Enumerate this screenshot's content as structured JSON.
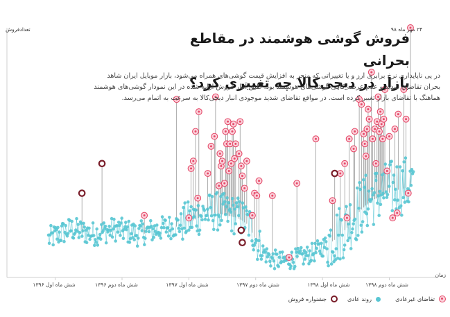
{
  "title": {
    "line1": "فروش گوشی هوشمند در مقاطع بحرانی",
    "line2": "بازار در دیجی‌کالا چه تغییری کرد؟"
  },
  "description": {
    "line1": "در پی ناپایداری نرخ برابری ارز و یا تغییراتی که منجر به افزایش قیمت گوشی‌های همراه می‌شود، بازار موبایل ایران شاهد",
    "line2": "بحران تقاضای شدید و عدم عرضه کافی گوشی‌های هوشمند بود. طبق آمار فروش ارایه شده در این نمودار گوشی‌های هوشمند",
    "line3": "هماهنگ با تقاضای بازار تغییر کرده است. در مواقع تقاضای شدید موجودی انبار دیجی‌کالا به سرعت به اتمام می‌رسد."
  },
  "axes": {
    "ylabel": "تعدادفروش",
    "xlabel": "زمان"
  },
  "peak_annotation": "۲۴ مهر ماه ۹۸",
  "x_ticks": [
    "شش ماه اول ۱۳۹۶",
    "شش ماه دوم ۱۳۹۶",
    "شش ماه اول ۱۳۹۷",
    "شش ماه دوم ۱۳۹۷",
    "شش ماه اول ۱۳۹۸",
    "شش ماه دوم ۱۳۹۸"
  ],
  "legend": {
    "abnormal": "تقاضای غیرعادی",
    "normal": "روند عادی",
    "festival": "جشنواره فروش"
  },
  "colors": {
    "normal": "#59c6d3",
    "abnormal": "#e54b6a",
    "abnormal_fill": "#fbd3dc",
    "festival": "#7a1e2a",
    "axis": "#cfcfcf"
  },
  "chart_data": {
    "type": "scatter",
    "note": "Daily smartphone sales index (unlabeled y axis, 0-100 scale); x in months since start of 1396.",
    "xlim": [
      0,
      33
    ],
    "ylim": [
      0,
      100
    ],
    "categories": [
      "شش ماه اول ۱۳۹۶",
      "شش ماه دوم ۱۳۹۶",
      "شش ماه اول ۱۳۹۷",
      "شش ماه دوم ۱۳۹۷",
      "شش ماه اول ۱۳۹۸",
      "شش ماه دوم ۱۳۹۸"
    ],
    "category_centers": [
      3,
      9,
      15,
      21,
      27,
      32
    ],
    "baseline_trend": [
      [
        0,
        14
      ],
      [
        1,
        16
      ],
      [
        2,
        18
      ],
      [
        3,
        17
      ],
      [
        4,
        16
      ],
      [
        5,
        17
      ],
      [
        6,
        18
      ],
      [
        7,
        17
      ],
      [
        8,
        16
      ],
      [
        9,
        17
      ],
      [
        10,
        18
      ],
      [
        11,
        19
      ],
      [
        12,
        20
      ],
      [
        13,
        22
      ],
      [
        14,
        24
      ],
      [
        15,
        25
      ],
      [
        16,
        24
      ],
      [
        17,
        23
      ],
      [
        18,
        20
      ],
      [
        19,
        10
      ],
      [
        20,
        6
      ],
      [
        21,
        5
      ],
      [
        22,
        6
      ],
      [
        23,
        7
      ],
      [
        24,
        9
      ],
      [
        25,
        12
      ],
      [
        26,
        15
      ],
      [
        27,
        20
      ],
      [
        28,
        26
      ],
      [
        29,
        30
      ],
      [
        30,
        32
      ],
      [
        31,
        34
      ],
      [
        32,
        35
      ],
      [
        33,
        36
      ]
    ],
    "series": [
      {
        "name": "جشنواره فروش",
        "points": [
          [
            3.0,
            33
          ],
          [
            4.8,
            45
          ],
          [
            17.3,
            18
          ],
          [
            17.4,
            13
          ],
          [
            25.7,
            41
          ]
        ]
      },
      {
        "name": "تقاضای غیرعادی",
        "points": [
          [
            8.6,
            24
          ],
          [
            11.5,
            71
          ],
          [
            12.6,
            23
          ],
          [
            12.8,
            43
          ],
          [
            13.0,
            46
          ],
          [
            13.2,
            58
          ],
          [
            13.4,
            31
          ],
          [
            13.5,
            66
          ],
          [
            14.3,
            41
          ],
          [
            14.6,
            52
          ],
          [
            14.9,
            56
          ],
          [
            15.0,
            72
          ],
          [
            15.3,
            36
          ],
          [
            15.4,
            49
          ],
          [
            15.5,
            44
          ],
          [
            15.6,
            46
          ],
          [
            15.8,
            37
          ],
          [
            15.9,
            58
          ],
          [
            16.0,
            53
          ],
          [
            16.1,
            62
          ],
          [
            16.2,
            42
          ],
          [
            16.3,
            53
          ],
          [
            16.4,
            45
          ],
          [
            16.5,
            58
          ],
          [
            16.6,
            61
          ],
          [
            16.7,
            47
          ],
          [
            16.8,
            53
          ],
          [
            17.1,
            49
          ],
          [
            17.2,
            62
          ],
          [
            17.3,
            44
          ],
          [
            17.4,
            40
          ],
          [
            17.6,
            35
          ],
          [
            17.8,
            46
          ],
          [
            18.3,
            24
          ],
          [
            18.5,
            33
          ],
          [
            18.7,
            32
          ],
          [
            18.9,
            38
          ],
          [
            20.1,
            32
          ],
          [
            21.6,
            7
          ],
          [
            22.3,
            37
          ],
          [
            24.0,
            55
          ],
          [
            25.5,
            30
          ],
          [
            26.2,
            41
          ],
          [
            26.6,
            45
          ],
          [
            26.8,
            23
          ],
          [
            27.0,
            55
          ],
          [
            27.4,
            51
          ],
          [
            27.5,
            58
          ],
          [
            27.9,
            71
          ],
          [
            28.1,
            69
          ],
          [
            28.3,
            57
          ],
          [
            28.4,
            53
          ],
          [
            28.5,
            48
          ],
          [
            28.6,
            59
          ],
          [
            28.7,
            67
          ],
          [
            28.8,
            63
          ],
          [
            29.0,
            82
          ],
          [
            29.1,
            55
          ],
          [
            29.3,
            59
          ],
          [
            29.4,
            45
          ],
          [
            29.5,
            62
          ],
          [
            29.6,
            72
          ],
          [
            29.7,
            58
          ],
          [
            29.8,
            66
          ],
          [
            29.9,
            61
          ],
          [
            30.0,
            55
          ],
          [
            30.1,
            63
          ],
          [
            30.2,
            75
          ],
          [
            30.4,
            42
          ],
          [
            30.6,
            56
          ],
          [
            30.9,
            23
          ],
          [
            31.1,
            59
          ],
          [
            31.3,
            25
          ],
          [
            31.4,
            65
          ],
          [
            31.9,
            75
          ],
          [
            32.1,
            63
          ],
          [
            32.3,
            33
          ],
          [
            32.5,
            100
          ]
        ]
      }
    ]
  }
}
